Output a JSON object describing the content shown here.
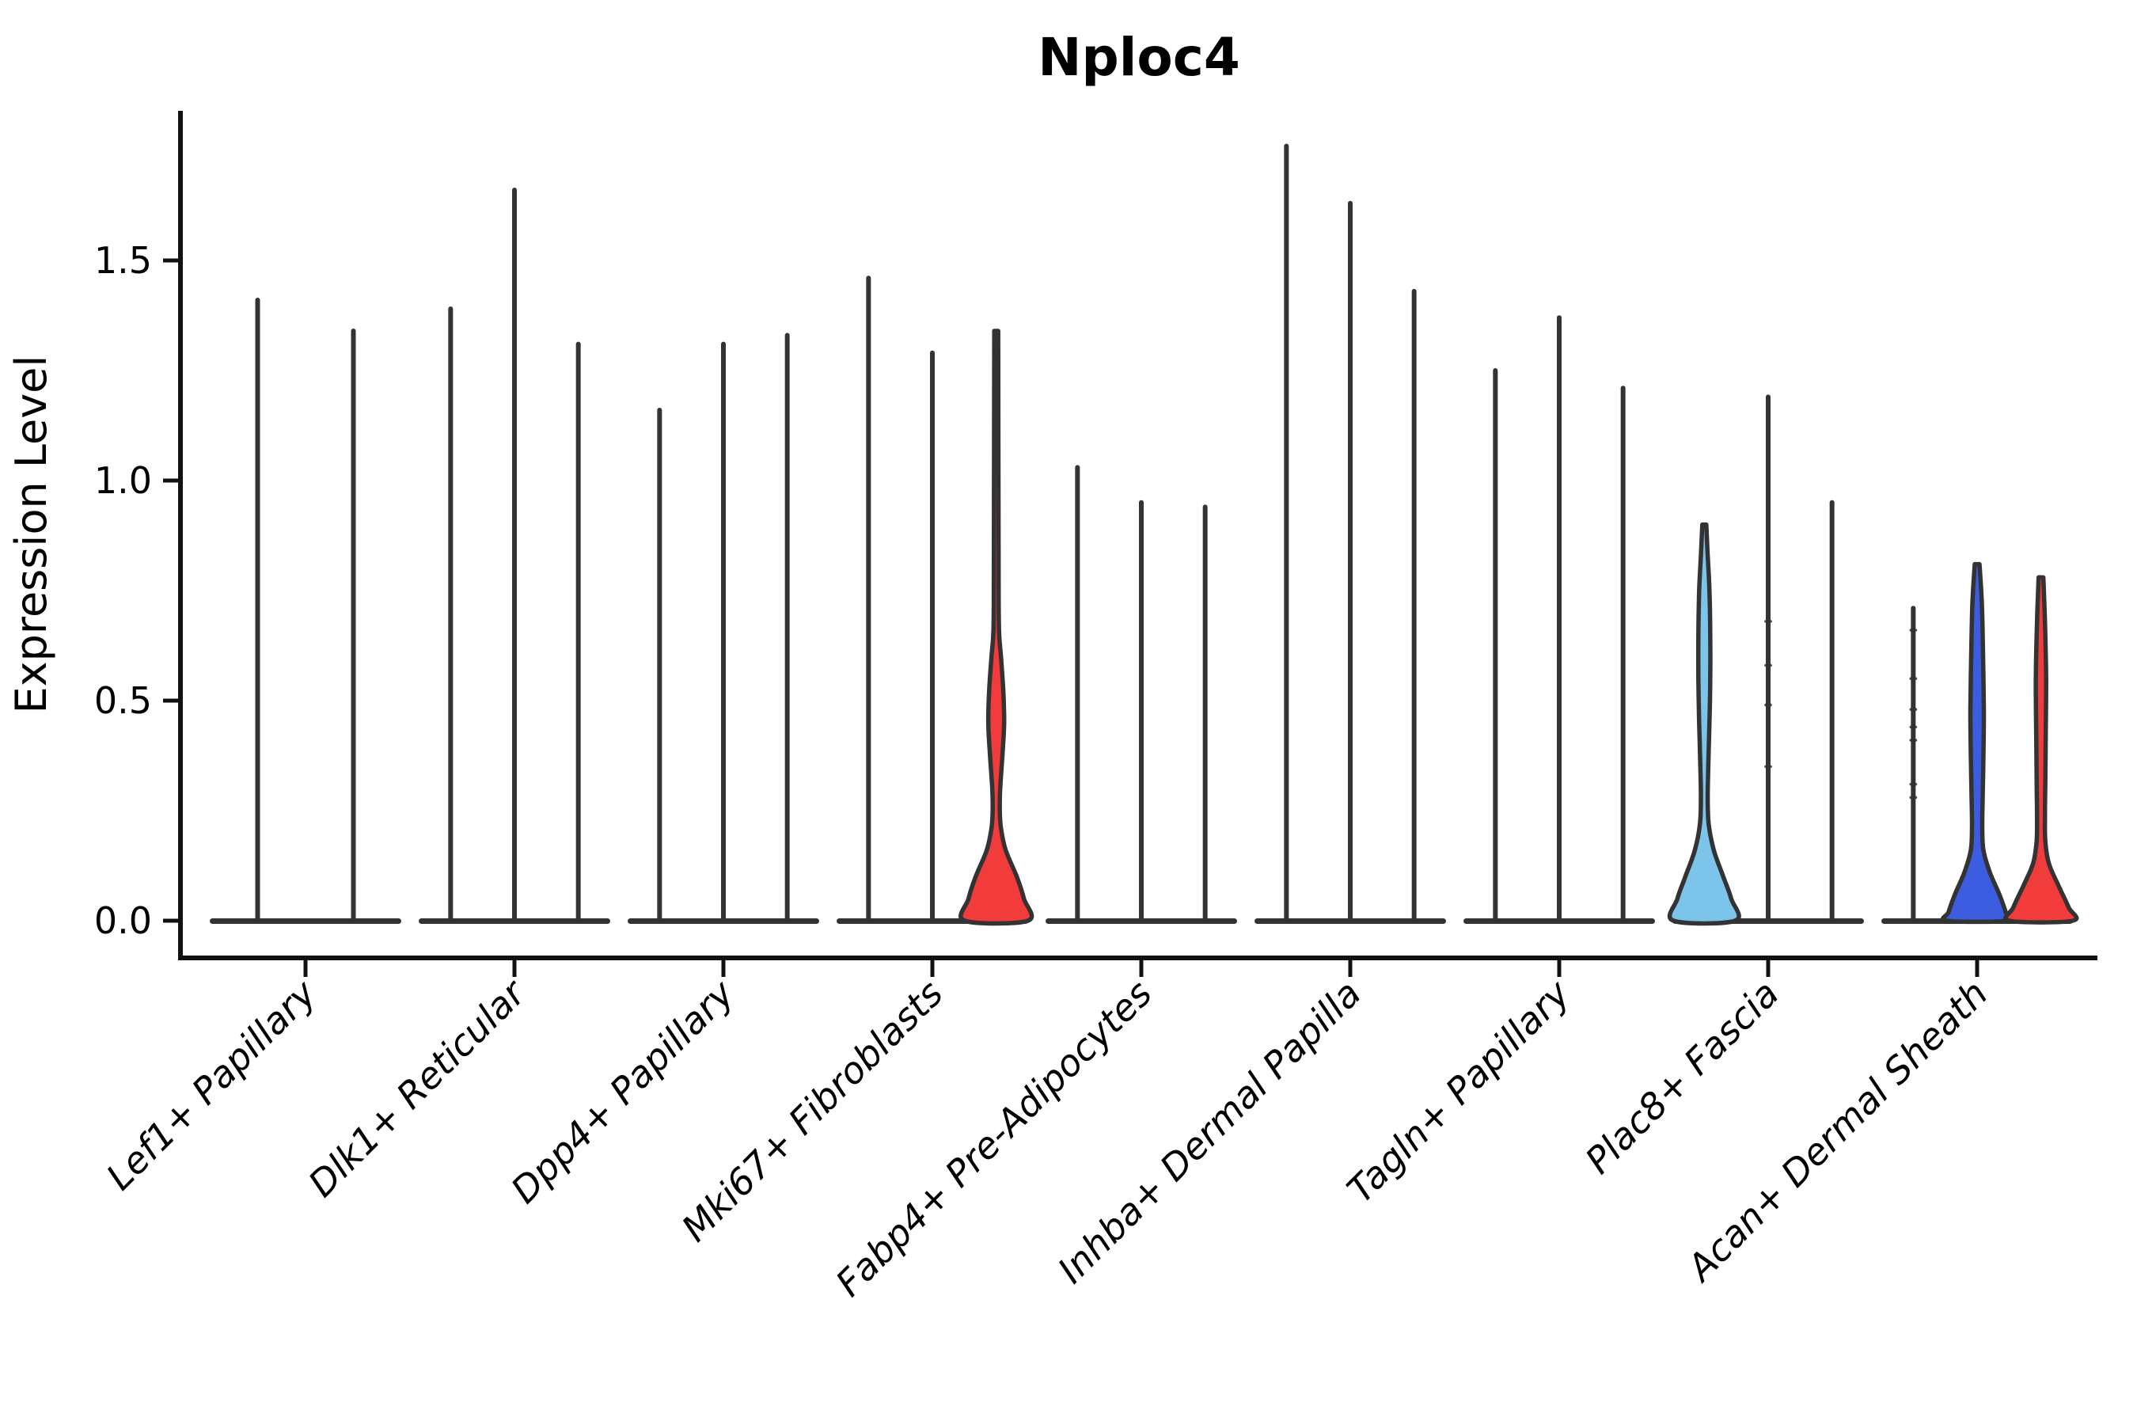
{
  "chart_data": {
    "type": "violin",
    "title": "Nploc4",
    "ylabel": "Expression Level",
    "xlabel": "",
    "ylim": [
      -0.085,
      1.84
    ],
    "yticks": [
      0.0,
      0.5,
      1.0,
      1.5
    ],
    "ytick_labels": [
      "0.0",
      "0.5",
      "1.0",
      "1.5"
    ],
    "legend": "none",
    "grid": false,
    "categories": [
      "Lef1+ Papillary",
      "Dlk1+ Reticular",
      "Dpp4+ Papillary",
      "Mki67+ Fibroblasts",
      "Fabp4+ Pre-Adipocytes",
      "Inhba+ Dermal Papilla",
      "Tagln+ Papillary",
      "Plac8+ Fascia",
      "Acan+ Dermal Sheath"
    ],
    "colors": {
      "dark": "#333333",
      "spine": "#111111",
      "red": "#f23b3b",
      "blue": "#3c5de0",
      "lightblue": "#7cc4ea"
    },
    "groups": [
      {
        "label": "Lef1+ Papillary",
        "violins": [
          {
            "max": 1.41,
            "color": "dark",
            "shape": "spike"
          },
          {
            "max": 1.34,
            "color": "dark",
            "shape": "spike"
          }
        ]
      },
      {
        "label": "Dlk1+ Reticular",
        "violins": [
          {
            "max": 1.39,
            "color": "dark",
            "shape": "spike"
          },
          {
            "max": 1.66,
            "color": "dark",
            "shape": "spike"
          },
          {
            "max": 1.31,
            "color": "dark",
            "shape": "spike"
          }
        ]
      },
      {
        "label": "Dpp4+ Papillary",
        "violins": [
          {
            "max": 1.16,
            "color": "dark",
            "shape": "spike"
          },
          {
            "max": 1.31,
            "color": "dark",
            "shape": "spike"
          },
          {
            "max": 1.33,
            "color": "dark",
            "shape": "spike"
          }
        ]
      },
      {
        "label": "Mki67+ Fibroblasts",
        "violins": [
          {
            "max": 1.46,
            "color": "dark",
            "shape": "spike"
          },
          {
            "max": 1.29,
            "color": "dark",
            "shape": "spike"
          },
          {
            "max": 1.34,
            "color": "red",
            "shape": "violin",
            "profile": [
              [
                1.34,
                2.5
              ],
              [
                0.8,
                3
              ],
              [
                0.66,
                3.5
              ],
              [
                0.6,
                6
              ],
              [
                0.52,
                9
              ],
              [
                0.45,
                10
              ],
              [
                0.38,
                8
              ],
              [
                0.3,
                5
              ],
              [
                0.25,
                4.5
              ],
              [
                0.21,
                6
              ],
              [
                0.16,
                12
              ],
              [
                0.1,
                26
              ],
              [
                0.05,
                35
              ],
              [
                0.0,
                40
              ]
            ]
          }
        ]
      },
      {
        "label": "Fabp4+ Pre-Adipocytes",
        "violins": [
          {
            "max": 1.03,
            "color": "dark",
            "shape": "spike"
          },
          {
            "max": 0.95,
            "color": "dark",
            "shape": "spike"
          },
          {
            "max": 0.94,
            "color": "dark",
            "shape": "spike"
          }
        ]
      },
      {
        "label": "Inhba+ Dermal Papilla",
        "violins": [
          {
            "max": 1.76,
            "color": "dark",
            "shape": "spike"
          },
          {
            "max": 1.63,
            "color": "dark",
            "shape": "spike"
          },
          {
            "max": 1.43,
            "color": "dark",
            "shape": "spike"
          }
        ]
      },
      {
        "label": "Tagln+ Papillary",
        "violins": [
          {
            "max": 1.25,
            "color": "dark",
            "shape": "spike"
          },
          {
            "max": 1.37,
            "color": "dark",
            "shape": "spike"
          },
          {
            "max": 1.21,
            "color": "dark",
            "shape": "spike"
          }
        ]
      },
      {
        "label": "Plac8+ Fascia",
        "violins": [
          {
            "max": 0.9,
            "color": "lightblue",
            "shape": "violin",
            "profile": [
              [
                0.9,
                2.5
              ],
              [
                0.84,
                4
              ],
              [
                0.75,
                6.5
              ],
              [
                0.65,
                7.5
              ],
              [
                0.55,
                7.5
              ],
              [
                0.45,
                6.5
              ],
              [
                0.35,
                5
              ],
              [
                0.28,
                4.3
              ],
              [
                0.22,
                5.5
              ],
              [
                0.16,
                12
              ],
              [
                0.1,
                24
              ],
              [
                0.05,
                34
              ],
              [
                0.0,
                39
              ]
            ]
          },
          {
            "max": 1.19,
            "color": "dark",
            "shape": "spike",
            "points": [
              0.68,
              0.58,
              0.49,
              0.35
            ]
          },
          {
            "max": 0.95,
            "color": "dark",
            "shape": "spike"
          }
        ]
      },
      {
        "label": "Acan+ Dermal Sheath",
        "violins": [
          {
            "max": 0.71,
            "color": "dark",
            "shape": "spike",
            "points": [
              0.66,
              0.55,
              0.48,
              0.44,
              0.41,
              0.31,
              0.28
            ]
          },
          {
            "max": 0.81,
            "color": "blue",
            "shape": "violin",
            "profile": [
              [
                0.81,
                3
              ],
              [
                0.72,
                6
              ],
              [
                0.6,
                7.5
              ],
              [
                0.48,
                8.5
              ],
              [
                0.38,
                8
              ],
              [
                0.28,
                7
              ],
              [
                0.21,
                6.5
              ],
              [
                0.16,
                8
              ],
              [
                0.11,
                16
              ],
              [
                0.06,
                28
              ],
              [
                0.02,
                36
              ],
              [
                0.0,
                38
              ]
            ]
          },
          {
            "max": 0.78,
            "color": "red",
            "shape": "violin",
            "profile": [
              [
                0.78,
                3
              ],
              [
                0.68,
                5
              ],
              [
                0.55,
                6.5
              ],
              [
                0.42,
                6
              ],
              [
                0.32,
                5.5
              ],
              [
                0.24,
                5
              ],
              [
                0.18,
                5.5
              ],
              [
                0.13,
                10
              ],
              [
                0.08,
                22
              ],
              [
                0.03,
                35
              ],
              [
                0.0,
                40
              ]
            ]
          }
        ]
      }
    ]
  }
}
